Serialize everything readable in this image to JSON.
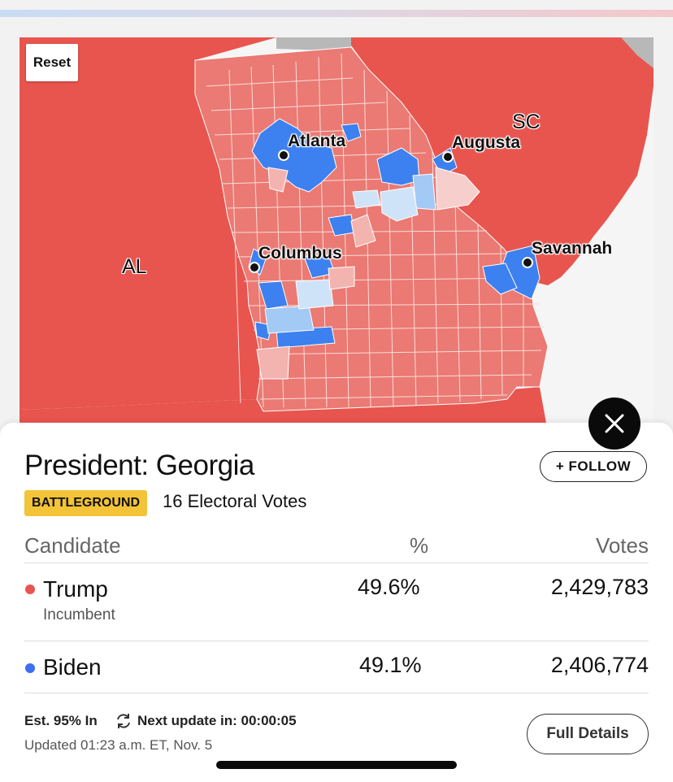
{
  "map": {
    "reset_label": "Reset",
    "cities": {
      "atlanta": "Atlanta",
      "augusta": "Augusta",
      "columbus": "Columbus",
      "savannah": "Savannah"
    },
    "states": {
      "al": "AL",
      "sc": "SC"
    },
    "colors": {
      "rep_strong": "#e8554e",
      "rep_county": "#ea7a73",
      "rep_light": "#f3b4b0",
      "rep_pale": "#f6cfcc",
      "dem_strong": "#3d80f0",
      "dem_light": "#a3c9f5",
      "dem_pale": "#cfe3f8",
      "none": "#b8b8b8"
    }
  },
  "race": {
    "title": "President: Georgia",
    "follow_label": "+ FOLLOW",
    "badge": "BATTLEGROUND",
    "electoral_votes": "16 Electoral Votes",
    "columns": {
      "candidate": "Candidate",
      "percent": "%",
      "votes": "Votes"
    },
    "candidates": [
      {
        "name": "Trump",
        "note": "Incumbent",
        "percent": "49.6%",
        "votes": "2,429,783",
        "color": "#e8554e"
      },
      {
        "name": "Biden",
        "note": "",
        "percent": "49.1%",
        "votes": "2,406,774",
        "color": "#3d6ff0"
      }
    ],
    "estimate": "Est. 95% In",
    "next_update": "Next update in: 00:00:05",
    "updated": "Updated 01:23 a.m. ET, Nov. 5",
    "details_label": "Full Details"
  }
}
